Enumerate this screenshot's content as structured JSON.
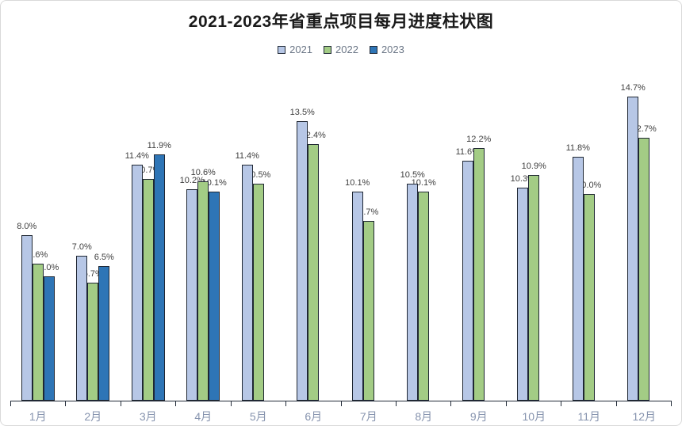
{
  "chart_data": {
    "type": "bar",
    "title": "2021-2023年省重点项目每月进度柱状图",
    "categories": [
      "1月",
      "2月",
      "3月",
      "4月",
      "5月",
      "6月",
      "7月",
      "8月",
      "9月",
      "10月",
      "11月",
      "12月"
    ],
    "series": [
      {
        "name": "2021",
        "color": "#b7c7e6",
        "values": [
          8.0,
          7.0,
          11.4,
          10.2,
          11.4,
          13.5,
          10.1,
          10.5,
          11.6,
          10.3,
          11.8,
          14.7
        ]
      },
      {
        "name": "2022",
        "color": "#a3cc85",
        "values": [
          6.6,
          5.7,
          10.7,
          10.6,
          10.5,
          12.4,
          8.7,
          10.1,
          12.2,
          10.9,
          10.0,
          12.7
        ]
      },
      {
        "name": "2023",
        "color": "#2e75b6",
        "values": [
          6.0,
          6.5,
          11.9,
          10.1,
          null,
          null,
          null,
          null,
          null,
          null,
          null,
          null
        ]
      }
    ],
    "value_suffix": "%",
    "data_labels": true,
    "ylim": [
      0,
      15.3
    ],
    "grid": false,
    "legend_position": "top",
    "xlabel": "",
    "ylabel": ""
  },
  "colors": {
    "bar_border": "#1f2733",
    "axis_line": "#222b38",
    "data_label_text": "#404040",
    "axis_tick_label_text": "#8693ae",
    "legend_text": "#6b7686",
    "title_text": "#1a1a1a",
    "frame_border": "#d9d9d9",
    "background": "#ffffff"
  }
}
